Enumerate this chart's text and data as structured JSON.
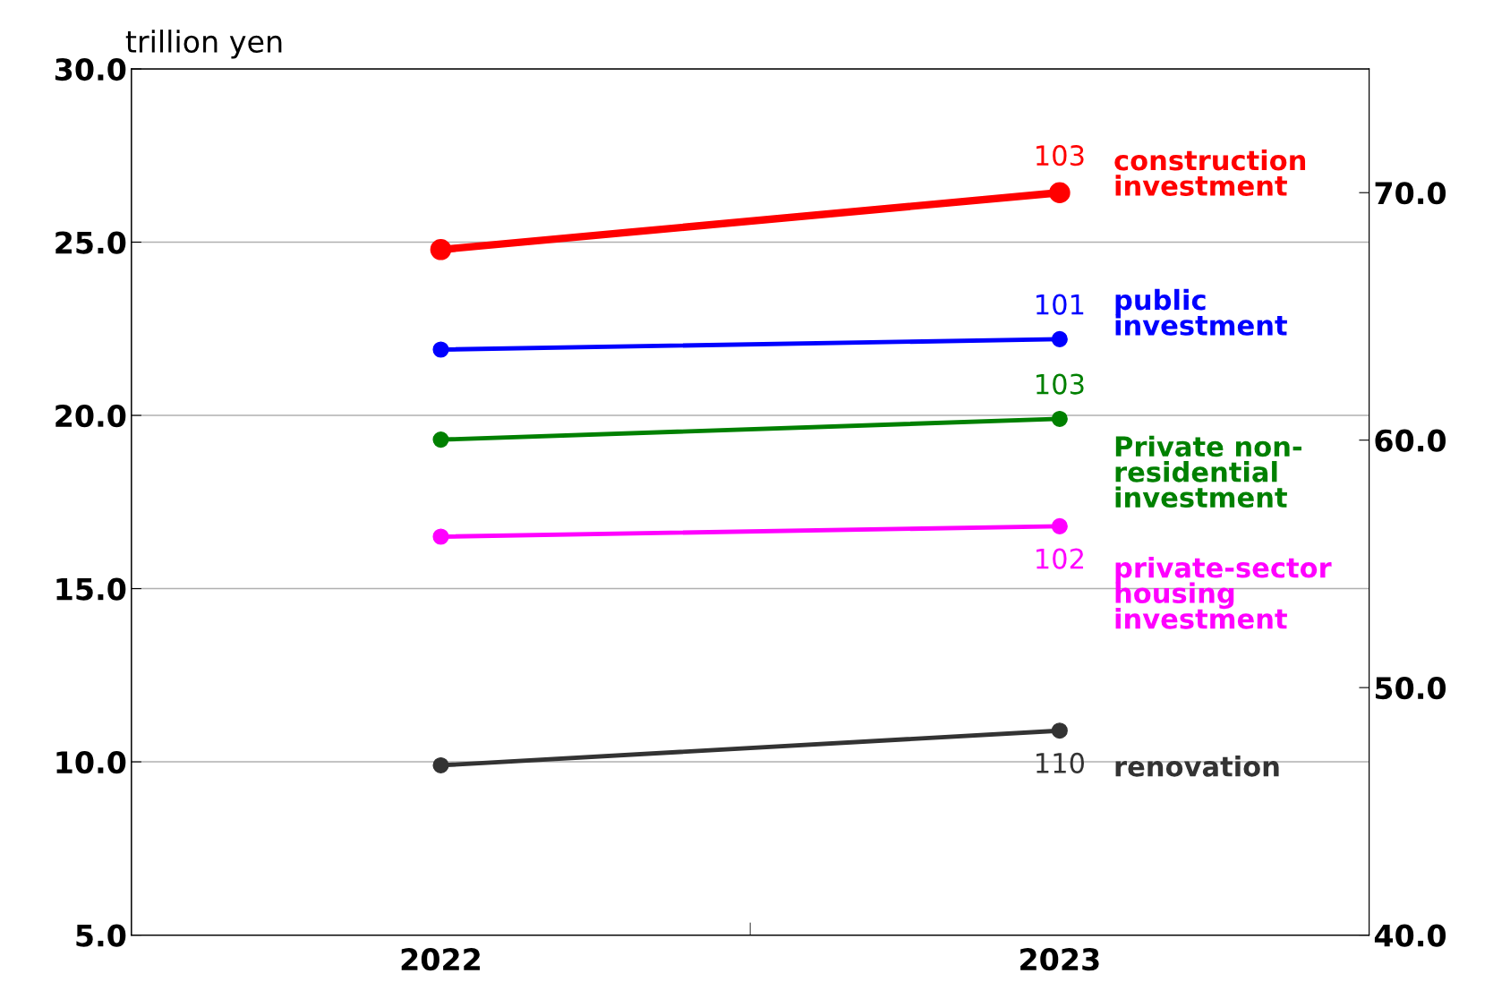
{
  "chart_data": {
    "type": "line",
    "ylabel": "trillion yen",
    "categories": [
      "2022",
      "2023"
    ],
    "ylim": [
      5.0,
      30.0
    ],
    "yticks": [
      {
        "value": 5,
        "label": "5.0"
      },
      {
        "value": 10,
        "label": "10.0"
      },
      {
        "value": 15,
        "label": "15.0"
      },
      {
        "value": 20,
        "label": "20.0"
      },
      {
        "value": 25,
        "label": "25.0"
      },
      {
        "value": 30,
        "label": "30.0"
      }
    ],
    "y2lim": [
      40.0,
      75.0
    ],
    "y2ticks": [
      {
        "value": 40,
        "label": "40.0"
      },
      {
        "value": 50,
        "label": "50.0"
      },
      {
        "value": 60,
        "label": "60.0"
      },
      {
        "value": 70,
        "label": "70.0"
      }
    ],
    "grid": "y",
    "legend": false,
    "marker": "circle",
    "line_style": "solid",
    "annotations": [
      "103",
      {
        "text": "101",
        "x": "2023",
        "y": 22.2
      },
      {
        "text": "103",
        "x": "2023",
        "y": 19.9
      },
      {
        "text": "102",
        "x": "2023",
        "y": 16.8
      },
      {
        "text": "110",
        "x": "2023",
        "y": 10.9
      }
    ],
    "series": [
      {
        "name": "construction\ninvestment",
        "color": "#ff0000",
        "axis": "y2",
        "values": [
          67.7,
          70.0
        ]
      },
      {
        "name": "public\ninvestment",
        "color": "#0000ff",
        "values": [
          21.9,
          22.2
        ]
      },
      {
        "name": "Private non-\nresidential\ninvestment",
        "color": "#008000",
        "values": [
          19.3,
          19.9
        ]
      },
      {
        "name": "private-sector\nhousing\ninvestment",
        "color": "#ff00ff",
        "values": [
          16.5,
          16.8
        ]
      },
      {
        "name": "renovation",
        "color": "#333333",
        "values": [
          9.9,
          10.9
        ]
      }
    ]
  }
}
